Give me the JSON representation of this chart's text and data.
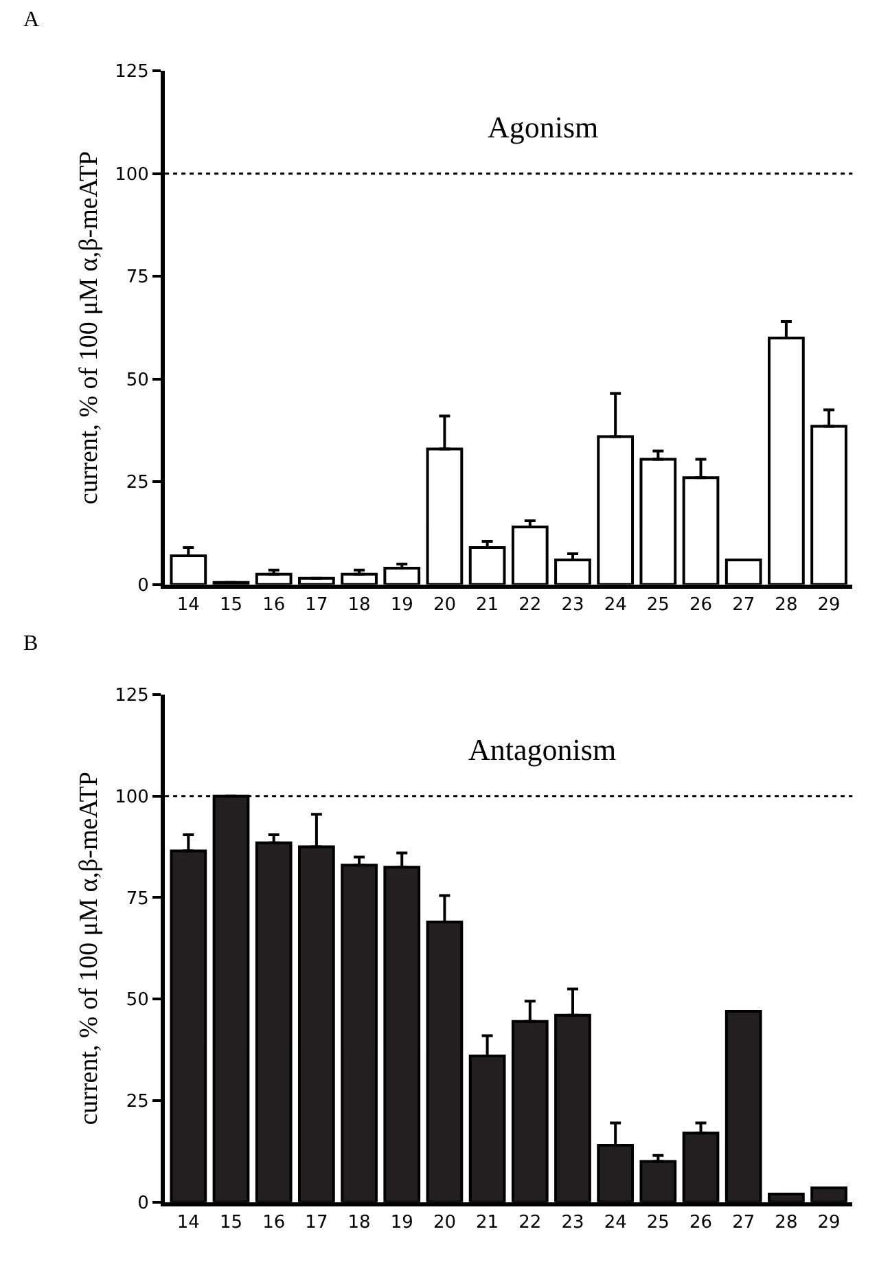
{
  "chart_data": [
    {
      "type": "bar",
      "title": "Agonism",
      "ylabel": "current, % of 100 μM α,β-meATP",
      "annotations": [
        "A"
      ],
      "categories": [
        "14",
        "15",
        "16",
        "17",
        "18",
        "19",
        "20",
        "21",
        "22",
        "23",
        "24",
        "25",
        "26",
        "27",
        "28",
        "29"
      ],
      "values": [
        7,
        0.5,
        2.5,
        1.5,
        2.5,
        4,
        33,
        9,
        14,
        6,
        36,
        30.5,
        26,
        6,
        60,
        38.5
      ],
      "errors": [
        [
          7,
          9
        ],
        null,
        [
          2.5,
          3.5
        ],
        null,
        [
          2.5,
          3.5
        ],
        [
          4,
          5
        ],
        [
          33,
          41
        ],
        [
          9,
          10.5
        ],
        [
          14,
          15.5
        ],
        [
          6,
          7.5
        ],
        [
          36,
          46.5
        ],
        [
          30.5,
          32.5
        ],
        [
          26,
          30.5
        ],
        null,
        [
          60,
          64
        ],
        [
          38.5,
          42.5
        ]
      ],
      "color": "#ffffff",
      "ylim": [
        0,
        125
      ],
      "yticks": [
        0,
        25,
        50,
        75,
        100,
        125
      ],
      "ref_lines": [
        {
          "axis": "y",
          "value": 100,
          "line_style": "dotted",
          "color": "#000000"
        }
      ]
    },
    {
      "type": "bar",
      "title": "Antagonism",
      "ylabel": "current, % of 100 μM α,β-meATP",
      "annotations": [
        "B"
      ],
      "categories": [
        "14",
        "15",
        "16",
        "17",
        "18",
        "19",
        "20",
        "21",
        "22",
        "23",
        "24",
        "25",
        "26",
        "27",
        "28",
        "29"
      ],
      "values": [
        86.5,
        100,
        88.5,
        87.5,
        83,
        82.5,
        69,
        36,
        44.5,
        46,
        14,
        10,
        17,
        47,
        2,
        3.5
      ],
      "errors": [
        [
          86.5,
          90.5
        ],
        null,
        [
          88.5,
          90.5
        ],
        [
          87.5,
          95.5
        ],
        [
          83,
          85
        ],
        [
          82.5,
          86
        ],
        [
          69,
          75.5
        ],
        [
          36,
          41
        ],
        [
          44.5,
          49.5
        ],
        [
          46,
          52.5
        ],
        [
          14,
          19.5
        ],
        [
          10,
          11.5
        ],
        [
          17,
          19.5
        ],
        null,
        null,
        null
      ],
      "color": "#231f20",
      "ylim": [
        0,
        125
      ],
      "yticks": [
        0,
        25,
        50,
        75,
        100,
        125
      ],
      "ref_lines": [
        {
          "axis": "y",
          "value": 100,
          "line_style": "dotted",
          "color": "#000000"
        }
      ]
    }
  ]
}
